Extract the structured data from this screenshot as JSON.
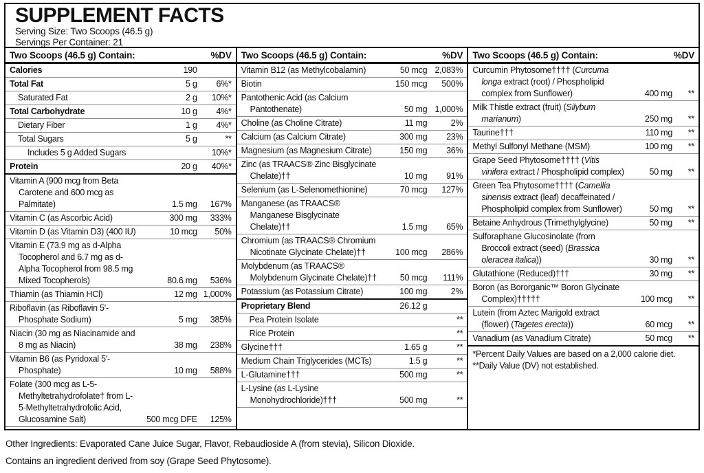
{
  "colors": {
    "text": "#111111",
    "line": "#111111",
    "row-line": "#8a8a8a",
    "bg": "#ffffff"
  },
  "header": {
    "title": "SUPPLEMENT FACTS",
    "serving_size": "Serving Size: Two Scoops (46.5 g)",
    "servings_per_container": "Servings Per Container: 21"
  },
  "column_header": {
    "label": "Two Scoops (46.5 g) Contain:",
    "dv": "%DV"
  },
  "columns": [
    {
      "rows": [
        {
          "name": "Calories",
          "amount": "190",
          "dv": "",
          "bold": true
        },
        {
          "name": "Total Fat",
          "amount": "5 g",
          "dv": "6%*",
          "bold": true
        },
        {
          "name": "Saturated Fat",
          "amount": "2 g",
          "dv": "10%*",
          "indent": 1
        },
        {
          "name": "Total Carbohydrate",
          "amount": "10 g",
          "dv": "4%*",
          "bold": true
        },
        {
          "name": "Dietary Fiber",
          "amount": "1 g",
          "dv": "4%*",
          "indent": 1
        },
        {
          "name": "Total Sugars",
          "amount": "5 g",
          "dv": "**",
          "indent": 1
        },
        {
          "name": "Includes 5 g Added Sugars",
          "amount": "",
          "dv": "10%*",
          "indent": 2
        },
        {
          "name": "Protein",
          "amount": "20 g",
          "dv": "40%*",
          "bold": true,
          "sep_below": "medium"
        },
        {
          "name": "Vitamin A (900 mcg from Beta Carotene and 600 mcg as Palmitate)",
          "amount": "1.5 mg",
          "dv": "167%"
        },
        {
          "name": "Vitamin C (as Ascorbic Acid)",
          "amount": "300 mg",
          "dv": "333%"
        },
        {
          "name": "Vitamin D (as Vitamin D3) (400 IU)",
          "amount": "10 mcg",
          "dv": "50%"
        },
        {
          "name": "Vitamin E (73.9 mg as d-Alpha Tocopherol and 6.7 mg as d-Alpha Tocopherol from 98.5 mg Mixed Tocopherols)",
          "amount": "80.6 mg",
          "dv": "536%"
        },
        {
          "name": "Thiamin (as Thiamin HCl)",
          "amount": "12 mg",
          "dv": "1,000%"
        },
        {
          "name": "Riboflavin (as Riboflavin 5'-Phosphate Sodium)",
          "amount": "5 mg",
          "dv": "385%"
        },
        {
          "name": "Niacin (30 mg as Niacinamide and 8 mg as Niacin)",
          "amount": "38 mg",
          "dv": "238%"
        },
        {
          "name": "Vitamin B6 (as Pyridoxal 5'-Phosphate)",
          "amount": "10 mg",
          "dv": "588%"
        },
        {
          "name": "Folate (300 mcg as L-5-Methyltetrahydrofolate† from L-5-Methyltetrahydrofolic Acid, Glucosamine Salt)",
          "amount": "500 mcg DFE",
          "dv": "125%"
        }
      ]
    },
    {
      "rows": [
        {
          "name": "Vitamin B12 (as Methylcobalamin)",
          "amount": "50 mcg",
          "dv": "2,083%"
        },
        {
          "name": "Biotin",
          "amount": "150 mcg",
          "dv": "500%"
        },
        {
          "name": "Pantothenic Acid (as Calcium Pantothenate)",
          "amount": "50 mg",
          "dv": "1,000%"
        },
        {
          "name": "Choline (as Choline Citrate)",
          "amount": "11 mg",
          "dv": "2%"
        },
        {
          "name": "Calcium (as Calcium Citrate)",
          "amount": "300 mg",
          "dv": "23%"
        },
        {
          "name": "Magnesium (as Magnesium Citrate)",
          "amount": "150 mg",
          "dv": "36%"
        },
        {
          "name": "Zinc (as TRAACS® Zinc Bisglycinate Chelate)††",
          "amount": "10 mg",
          "dv": "91%"
        },
        {
          "name": "Selenium (as L-Selenomethionine)",
          "amount": "70 mcg",
          "dv": "127%"
        },
        {
          "name": "Manganese (as TRAACS® Manganese Bisglycinate Chelate)††",
          "amount": "1.5 mg",
          "dv": "65%"
        },
        {
          "name": "Chromium (as TRAACS® Chromium Nicotinate Glycinate Chelate)††",
          "amount": "100 mcg",
          "dv": "286%"
        },
        {
          "name": "Molybdenum (as TRAACS® Molybdenum Glycinate Chelate)††",
          "amount": "50 mcg",
          "dv": "111%"
        },
        {
          "name": "Potassium (as Potassium Citrate)",
          "amount": "100 mg",
          "dv": "2%",
          "sep_below": "medium"
        },
        {
          "name": "Proprietary Blend",
          "amount": "26.12 g",
          "dv": "",
          "bold": true
        },
        {
          "name": "Pea Protein Isolate",
          "amount": "",
          "dv": "**",
          "indent": 1
        },
        {
          "name": "Rice Protein",
          "amount": "",
          "dv": "**",
          "indent": 1
        },
        {
          "name": "Glycine†††",
          "amount": "1.65 g",
          "dv": "**"
        },
        {
          "name": "Medium Chain Triglycerides (MCTs)",
          "amount": "1.5 g",
          "dv": "**"
        },
        {
          "name": "L-Glutamine†††",
          "amount": "500 mg",
          "dv": "**"
        },
        {
          "name": "L-Lysine (as L-Lysine Monohydrochloride)†††",
          "amount": "500 mg",
          "dv": "**"
        }
      ]
    },
    {
      "rows": [
        {
          "name": [
            {
              "text": "Curcumin Phytosome†††† ("
            },
            {
              "text": "Curcuma longa",
              "italic": true
            },
            {
              "text": " extract (root) / Phospholipid complex from Sunflower)"
            }
          ],
          "amount": "400 mg",
          "dv": "**"
        },
        {
          "name": [
            {
              "text": "Milk Thistle extract (fruit) ("
            },
            {
              "text": "Silybum marianum",
              "italic": true
            },
            {
              "text": ")"
            }
          ],
          "amount": "250 mg",
          "dv": "**"
        },
        {
          "name": "Taurine†††",
          "amount": "110 mg",
          "dv": "**"
        },
        {
          "name": "Methyl Sulfonyl Methane (MSM)",
          "amount": "100 mg",
          "dv": "**"
        },
        {
          "name": [
            {
              "text": "Grape Seed Phytosome†††† ("
            },
            {
              "text": "Vitis vinifera",
              "italic": true
            },
            {
              "text": " extract / Phospholipid complex)"
            }
          ],
          "amount": "50 mg",
          "dv": "**"
        },
        {
          "name": [
            {
              "text": "Green Tea Phytosome†††† ("
            },
            {
              "text": "Camellia sinensis",
              "italic": true
            },
            {
              "text": " extract (leaf) decaffeinated / Phospholipid complex from Sunflower)"
            }
          ],
          "amount": "50 mg",
          "dv": "**"
        },
        {
          "name": "Betaine Anhydrous (Trimethylglycine)",
          "amount": "50 mg",
          "dv": "**"
        },
        {
          "name": [
            {
              "text": "Sulforaphane Glucosinolate (from Broccoli extract (seed) ("
            },
            {
              "text": "Brassica oleracea italica",
              "italic": true
            },
            {
              "text": "))"
            }
          ],
          "amount": "30 mg",
          "dv": "**"
        },
        {
          "name": "Glutathione (Reduced)†††",
          "amount": "30 mg",
          "dv": "**"
        },
        {
          "name": "Boron (as Bororganic™ Boron Glycinate Complex)†††††",
          "amount": "100 mcg",
          "dv": "**"
        },
        {
          "name": [
            {
              "text": "Lutein (from Aztec Marigold extract (flower) ("
            },
            {
              "text": "Tagetes erecta",
              "italic": true
            },
            {
              "text": "))"
            }
          ],
          "amount": "60 mcg",
          "dv": "**"
        },
        {
          "name": "Vanadium (as Vanadium Citrate)",
          "amount": "50 mcg",
          "dv": "**"
        }
      ],
      "footnotes": [
        "*Percent Daily Values are based on a 2,000 calorie diet.",
        "**Daily Value (DV) not established."
      ]
    }
  ],
  "footer": {
    "other_ingredients": "Other Ingredients: Evaporated Cane Juice Sugar, Flavor, Rebaudioside A (from stevia), Silicon Dioxide.",
    "allergen": "Contains an ingredient derived from soy (Grape Seed Phytosome)."
  }
}
